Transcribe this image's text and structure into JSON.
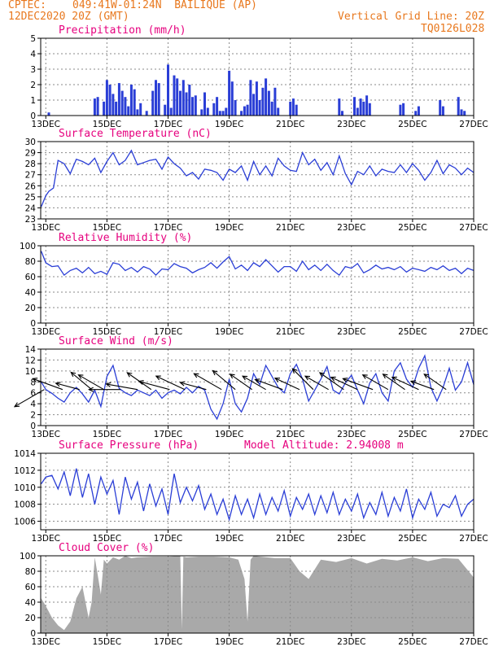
{
  "header": {
    "source": "CPTEC:",
    "location": "049:41W-01:24N  BAILIQUE (AP)",
    "date": "12DEC2020 20Z (GMT)",
    "grid_note": "Vertical Grid Line: 20Z",
    "code": "TQ0126L028"
  },
  "colors": {
    "header": "#e8781e",
    "title": "#e6007e",
    "line": "#2a3ed6",
    "cloud": "#a9a9a9",
    "grid": "#8a8a8a"
  },
  "x_axis": {
    "range_days": [
      12.833,
      27.0
    ],
    "tick_days": [
      13,
      15,
      17,
      19,
      21,
      23,
      25,
      27
    ],
    "tick_labels": [
      "13DEC",
      "15DEC",
      "17DEC",
      "19DEC",
      "21DEC",
      "23DEC",
      "25DEC",
      "27DEC"
    ]
  },
  "chart_data": [
    {
      "id": "precip",
      "type": "bar",
      "title": "Precipitation (mm/h)",
      "xlabel": "",
      "ylabel": "",
      "ylim": [
        0,
        5
      ],
      "yticks": [
        0,
        1,
        2,
        3,
        4,
        5
      ],
      "grid": true,
      "x": [
        13.1,
        14.6,
        14.7,
        14.9,
        15.0,
        15.1,
        15.2,
        15.3,
        15.4,
        15.5,
        15.6,
        15.7,
        15.8,
        15.9,
        16.0,
        16.1,
        16.3,
        16.5,
        16.6,
        16.7,
        16.9,
        17.0,
        17.1,
        17.2,
        17.3,
        17.4,
        17.5,
        17.6,
        17.7,
        17.8,
        17.9,
        18.1,
        18.2,
        18.3,
        18.5,
        18.6,
        18.7,
        18.8,
        18.9,
        19.0,
        19.1,
        19.2,
        19.4,
        19.5,
        19.6,
        19.7,
        19.8,
        19.9,
        20.0,
        20.1,
        20.2,
        20.3,
        20.4,
        20.5,
        20.6,
        21.0,
        21.1,
        21.2,
        22.6,
        22.7,
        23.1,
        23.2,
        23.3,
        23.4,
        23.5,
        23.6,
        24.6,
        24.7,
        25.1,
        25.2,
        25.9,
        26.0,
        26.5,
        26.6,
        26.7
      ],
      "values": [
        0.2,
        1.1,
        1.2,
        0.9,
        2.3,
        2.0,
        1.4,
        0.9,
        2.1,
        1.6,
        1.2,
        0.6,
        2.0,
        1.7,
        0.4,
        0.8,
        0.3,
        1.6,
        2.3,
        2.1,
        0.7,
        3.3,
        0.5,
        2.6,
        2.4,
        1.6,
        2.3,
        1.5,
        2.0,
        1.2,
        1.3,
        0.4,
        1.5,
        0.5,
        0.8,
        1.2,
        0.3,
        0.3,
        0.5,
        2.9,
        2.2,
        1.0,
        0.3,
        0.6,
        0.7,
        2.3,
        1.4,
        2.2,
        1.0,
        1.8,
        2.4,
        1.6,
        0.9,
        1.8,
        0.5,
        0.9,
        1.1,
        0.7,
        1.1,
        0.3,
        1.2,
        0.5,
        1.1,
        0.9,
        1.3,
        0.8,
        0.7,
        0.8,
        0.3,
        0.6,
        1.0,
        0.6,
        1.2,
        0.4,
        0.3
      ]
    },
    {
      "id": "temp",
      "type": "line",
      "title": "Surface Temperature (nC)",
      "xlabel": "",
      "ylabel": "",
      "ylim": [
        23,
        30
      ],
      "yticks": [
        23,
        24,
        25,
        26,
        27,
        28,
        29,
        30
      ],
      "grid": true,
      "x": [
        12.85,
        13.0,
        13.1,
        13.25,
        13.4,
        13.6,
        13.8,
        14.0,
        14.2,
        14.4,
        14.6,
        14.8,
        15.0,
        15.2,
        15.4,
        15.6,
        15.8,
        16.0,
        16.2,
        16.4,
        16.6,
        16.8,
        17.0,
        17.2,
        17.4,
        17.6,
        17.8,
        18.0,
        18.2,
        18.4,
        18.6,
        18.8,
        19.0,
        19.2,
        19.4,
        19.6,
        19.8,
        20.0,
        20.2,
        20.4,
        20.6,
        20.8,
        21.0,
        21.2,
        21.4,
        21.6,
        21.8,
        22.0,
        22.2,
        22.4,
        22.6,
        22.8,
        23.0,
        23.2,
        23.4,
        23.6,
        23.8,
        24.0,
        24.2,
        24.4,
        24.6,
        24.8,
        25.0,
        25.2,
        25.4,
        25.6,
        25.8,
        26.0,
        26.2,
        26.4,
        26.6,
        26.8,
        27.0
      ],
      "values": [
        24.1,
        25.1,
        25.5,
        25.8,
        28.3,
        28.0,
        27.1,
        28.4,
        28.2,
        27.9,
        28.5,
        27.2,
        28.2,
        29.0,
        27.9,
        28.3,
        29.2,
        27.9,
        28.1,
        28.3,
        28.4,
        27.5,
        28.6,
        28.0,
        27.6,
        26.9,
        27.2,
        26.6,
        27.5,
        27.4,
        27.2,
        26.5,
        27.5,
        27.2,
        27.8,
        26.5,
        28.2,
        27.0,
        27.8,
        26.9,
        28.5,
        27.8,
        27.4,
        27.3,
        29.0,
        27.9,
        28.4,
        27.4,
        28.1,
        27.0,
        28.7,
        27.1,
        26.1,
        27.3,
        27.0,
        27.8,
        26.9,
        27.5,
        27.3,
        27.2,
        27.9,
        27.2,
        28.0,
        27.4,
        26.5,
        27.2,
        28.3,
        27.1,
        27.9,
        27.6,
        27.0,
        27.6,
        27.2
      ]
    },
    {
      "id": "rh",
      "type": "line",
      "title": "Relative Humidity (%)",
      "xlabel": "",
      "ylabel": "",
      "ylim": [
        0,
        100
      ],
      "yticks": [
        0,
        20,
        40,
        60,
        80,
        100
      ],
      "grid": true,
      "x": [
        12.85,
        13.0,
        13.2,
        13.4,
        13.6,
        13.8,
        14.0,
        14.2,
        14.4,
        14.6,
        14.8,
        15.0,
        15.2,
        15.4,
        15.6,
        15.8,
        16.0,
        16.2,
        16.4,
        16.6,
        16.8,
        17.0,
        17.2,
        17.4,
        17.6,
        17.8,
        18.0,
        18.2,
        18.4,
        18.6,
        18.8,
        19.0,
        19.2,
        19.4,
        19.6,
        19.8,
        20.0,
        20.2,
        20.4,
        20.6,
        20.8,
        21.0,
        21.2,
        21.4,
        21.6,
        21.8,
        22.0,
        22.2,
        22.4,
        22.6,
        22.8,
        23.0,
        23.2,
        23.4,
        23.6,
        23.8,
        24.0,
        24.2,
        24.4,
        24.6,
        24.8,
        25.0,
        25.2,
        25.4,
        25.6,
        25.8,
        26.0,
        26.2,
        26.4,
        26.6,
        26.8,
        27.0
      ],
      "values": [
        93,
        78,
        73,
        74,
        62,
        68,
        71,
        65,
        72,
        64,
        67,
        63,
        78,
        76,
        68,
        72,
        66,
        73,
        70,
        62,
        70,
        69,
        77,
        73,
        71,
        65,
        69,
        72,
        78,
        71,
        79,
        86,
        70,
        75,
        68,
        78,
        73,
        82,
        74,
        66,
        73,
        73,
        67,
        80,
        69,
        75,
        68,
        76,
        68,
        62,
        73,
        71,
        77,
        65,
        69,
        75,
        70,
        72,
        69,
        73,
        66,
        71,
        69,
        67,
        72,
        69,
        74,
        68,
        71,
        64,
        71,
        68
      ]
    },
    {
      "id": "wind",
      "type": "line",
      "title": "Surface Wind (m/s)",
      "xlabel": "",
      "ylabel": "",
      "ylim": [
        0,
        14
      ],
      "yticks": [
        0,
        2,
        4,
        6,
        8,
        10,
        12,
        14
      ],
      "grid": true,
      "x": [
        12.85,
        13.0,
        13.2,
        13.4,
        13.6,
        13.8,
        14.0,
        14.2,
        14.4,
        14.6,
        14.8,
        15.0,
        15.2,
        15.4,
        15.6,
        15.8,
        16.0,
        16.2,
        16.4,
        16.6,
        16.8,
        17.0,
        17.2,
        17.4,
        17.6,
        17.8,
        18.0,
        18.2,
        18.4,
        18.6,
        18.8,
        19.0,
        19.2,
        19.4,
        19.6,
        19.8,
        20.0,
        20.2,
        20.4,
        20.6,
        20.8,
        21.0,
        21.2,
        21.4,
        21.6,
        21.8,
        22.0,
        22.2,
        22.4,
        22.6,
        22.8,
        23.0,
        23.2,
        23.4,
        23.6,
        23.8,
        24.0,
        24.2,
        24.4,
        24.6,
        24.8,
        25.0,
        25.2,
        25.4,
        25.6,
        25.8,
        26.0,
        26.2,
        26.4,
        26.6,
        26.8,
        27.0
      ],
      "values": [
        8.0,
        6.6,
        5.9,
        5.0,
        4.3,
        6.0,
        7.0,
        5.8,
        4.3,
        6.5,
        3.5,
        9.0,
        11.0,
        6.8,
        6.0,
        5.5,
        6.5,
        6.0,
        5.5,
        6.5,
        5.0,
        6.0,
        6.5,
        5.8,
        7.0,
        6.0,
        7.2,
        6.5,
        3.0,
        1.2,
        4.0,
        8.5,
        4.0,
        2.5,
        5.0,
        9.5,
        7.5,
        11.0,
        9.0,
        7.0,
        6.0,
        9.5,
        11.2,
        8.5,
        4.5,
        6.5,
        8.5,
        10.8,
        6.5,
        5.8,
        7.8,
        9.2,
        6.5,
        4.0,
        7.8,
        9.5,
        6.0,
        4.5,
        10.0,
        11.5,
        8.5,
        7.0,
        10.5,
        12.8,
        7.0,
        4.5,
        7.0,
        10.5,
        6.5,
        8.0,
        11.5,
        7.5
      ],
      "arrows": {
        "x": [
          12.95,
          13.55,
          14.1,
          14.5,
          14.9,
          15.45,
          16.0,
          16.45,
          17.05,
          17.55,
          18.25,
          18.75,
          19.2,
          19.75,
          20.2,
          20.75,
          21.3,
          21.75,
          22.25,
          22.75,
          23.2,
          23.7,
          24.2,
          24.75,
          25.2,
          25.7,
          26.1
        ],
        "speed": [
          7.0,
          6.5,
          5.0,
          5.5,
          6.0,
          6.5,
          6.5,
          6.0,
          6.5,
          6.5,
          5.5,
          6.5,
          6.0,
          5.5,
          5.5,
          6.0,
          5.5,
          6.0,
          5.5,
          6.0,
          6.0,
          6.5,
          6.0,
          5.5,
          6.0,
          5.0,
          5.5
        ],
        "angle_deg": [
          150,
          200,
          195,
          220,
          210,
          180,
          190,
          215,
          195,
          205,
          195,
          210,
          220,
          215,
          210,
          200,
          205,
          225,
          210,
          215,
          205,
          200,
          210,
          215,
          205,
          200,
          215
        ]
      }
    },
    {
      "id": "pressure",
      "type": "line",
      "title": "Surface Pressure (hPa)",
      "annotation": "Model Altitude: 2.94008 m",
      "xlabel": "",
      "ylabel": "",
      "ylim": [
        1005,
        1014
      ],
      "yticks": [
        1006,
        1008,
        1010,
        1012,
        1014
      ],
      "grid": true,
      "x": [
        12.85,
        13.0,
        13.2,
        13.4,
        13.6,
        13.8,
        14.0,
        14.2,
        14.4,
        14.6,
        14.8,
        15.0,
        15.2,
        15.4,
        15.6,
        15.8,
        16.0,
        16.2,
        16.4,
        16.6,
        16.8,
        17.0,
        17.2,
        17.4,
        17.6,
        17.8,
        18.0,
        18.2,
        18.4,
        18.6,
        18.8,
        19.0,
        19.2,
        19.4,
        19.6,
        19.8,
        20.0,
        20.2,
        20.4,
        20.6,
        20.8,
        21.0,
        21.2,
        21.4,
        21.6,
        21.8,
        22.0,
        22.2,
        22.4,
        22.6,
        22.8,
        23.0,
        23.2,
        23.4,
        23.6,
        23.8,
        24.0,
        24.2,
        24.4,
        24.6,
        24.8,
        25.0,
        25.2,
        25.4,
        25.6,
        25.8,
        26.0,
        26.2,
        26.4,
        26.6,
        26.8,
        27.0
      ],
      "values": [
        1010.4,
        1011.2,
        1011.4,
        1009.8,
        1011.8,
        1009.0,
        1012.2,
        1008.8,
        1011.6,
        1008.0,
        1011.2,
        1009.2,
        1010.8,
        1006.8,
        1011.2,
        1008.6,
        1010.6,
        1007.2,
        1010.4,
        1007.8,
        1009.8,
        1006.8,
        1011.6,
        1008.2,
        1010.0,
        1008.4,
        1010.2,
        1007.4,
        1009.2,
        1006.8,
        1008.6,
        1006.2,
        1009.0,
        1006.8,
        1008.6,
        1006.4,
        1009.2,
        1006.8,
        1008.8,
        1007.2,
        1009.6,
        1006.6,
        1008.8,
        1007.4,
        1009.2,
        1006.8,
        1009.0,
        1007.0,
        1009.4,
        1006.8,
        1008.6,
        1007.2,
        1009.2,
        1006.4,
        1008.2,
        1006.8,
        1009.4,
        1006.6,
        1008.8,
        1007.2,
        1009.8,
        1006.4,
        1008.6,
        1007.4,
        1009.4,
        1006.6,
        1008.0,
        1007.6,
        1009.0,
        1006.6,
        1008.0,
        1008.6
      ]
    },
    {
      "id": "cloud",
      "type": "area",
      "title": "Cloud Cover (%)",
      "xlabel": "",
      "ylabel": "",
      "ylim": [
        0,
        100
      ],
      "yticks": [
        0,
        20,
        40,
        60,
        80,
        100
      ],
      "grid": true,
      "x": [
        12.85,
        13.0,
        13.2,
        13.4,
        13.6,
        13.8,
        13.9,
        14.0,
        14.2,
        14.4,
        14.5,
        14.6,
        14.7,
        14.8,
        14.9,
        15.0,
        15.2,
        15.4,
        15.6,
        15.8,
        16.0,
        16.5,
        17.0,
        17.4,
        17.45,
        17.5,
        17.6,
        18.0,
        18.5,
        19.0,
        19.3,
        19.5,
        19.6,
        19.7,
        19.8,
        20.0,
        20.5,
        21.0,
        21.3,
        21.6,
        22.0,
        22.5,
        23.0,
        23.5,
        24.0,
        24.5,
        25.0,
        25.5,
        26.0,
        26.5,
        27.0
      ],
      "values": [
        45,
        35,
        20,
        10,
        4,
        15,
        30,
        45,
        60,
        20,
        40,
        98,
        75,
        50,
        95,
        90,
        98,
        95,
        100,
        97,
        98,
        99,
        99,
        100,
        5,
        99,
        98,
        99,
        99,
        98,
        95,
        70,
        15,
        95,
        100,
        99,
        97,
        97,
        80,
        70,
        95,
        92,
        97,
        90,
        96,
        94,
        98,
        93,
        97,
        96,
        72
      ]
    }
  ]
}
